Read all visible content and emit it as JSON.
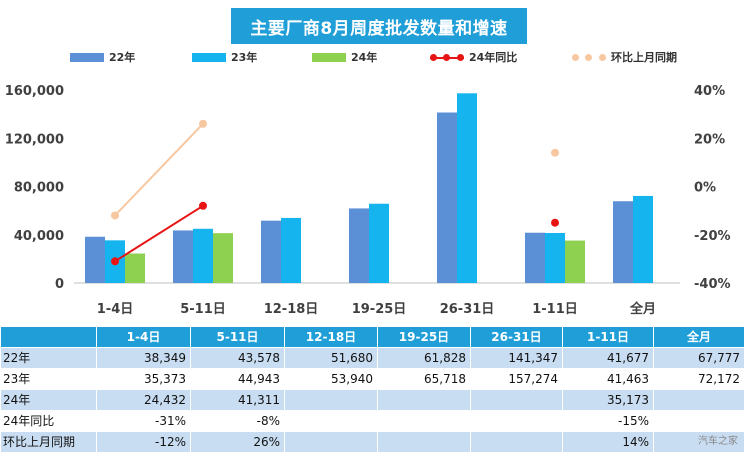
{
  "chart_data": {
    "type": "bar",
    "title": "主要厂商8月周度批发数量和增速",
    "categories": [
      "1-4日",
      "5-11日",
      "12-18日",
      "19-25日",
      "26-31日",
      "1-11日",
      "全月"
    ],
    "series": [
      {
        "name": "22年",
        "type": "bar",
        "color": "#5b8fd6",
        "values": [
          38349,
          43578,
          51680,
          61828,
          141347,
          41677,
          67777
        ]
      },
      {
        "name": "23年",
        "type": "bar",
        "color": "#16b4ee",
        "values": [
          35373,
          44943,
          53940,
          65718,
          157274,
          41463,
          72172
        ]
      },
      {
        "name": "24年",
        "type": "bar",
        "color": "#8ed04f",
        "values": [
          24432,
          41311,
          null,
          null,
          null,
          35173,
          null
        ]
      },
      {
        "name": "24年同比",
        "type": "line",
        "axis": "right",
        "color": "#e81414",
        "values": [
          -0.31,
          -0.08,
          null,
          null,
          null,
          -0.15,
          null
        ]
      },
      {
        "name": "环比上月同期",
        "type": "line",
        "axis": "right",
        "color": "#f7c7a0",
        "values": [
          -0.12,
          0.26,
          null,
          null,
          null,
          0.14,
          null
        ]
      }
    ],
    "y_left": {
      "min": 0,
      "max": 160000,
      "ticks": [
        0,
        40000,
        80000,
        120000,
        160000
      ],
      "tick_labels": [
        "0",
        "40,000",
        "80,000",
        "120,000",
        "160,000"
      ]
    },
    "y_right": {
      "min": -0.4,
      "max": 0.4,
      "ticks": [
        -0.4,
        -0.2,
        0,
        0.2,
        0.4
      ],
      "tick_labels": [
        "-40%",
        "-20%",
        "0%",
        "20%",
        "40%"
      ]
    },
    "grid": false,
    "legend_position": "top"
  },
  "table": {
    "header": [
      "",
      "1-4日",
      "5-11日",
      "12-18日",
      "19-25日",
      "26-31日",
      "1-11日",
      "全月"
    ],
    "rows": [
      {
        "label": "22年",
        "cells": [
          "38,349",
          "43,578",
          "51,680",
          "61,828",
          "141,347",
          "41,677",
          "67,777"
        ]
      },
      {
        "label": "23年",
        "cells": [
          "35,373",
          "44,943",
          "53,940",
          "65,718",
          "157,274",
          "41,463",
          "72,172"
        ]
      },
      {
        "label": "24年",
        "cells": [
          "24,432",
          "41,311",
          "",
          "",
          "",
          "35,173",
          ""
        ]
      },
      {
        "label": "24年同比",
        "cells": [
          "-31%",
          "-8%",
          "",
          "",
          "",
          "-15%",
          ""
        ]
      },
      {
        "label": "环比上月同期",
        "cells": [
          "-12%",
          "26%",
          "",
          "",
          "",
          "14%",
          ""
        ]
      }
    ]
  },
  "watermark": "汽车之家"
}
